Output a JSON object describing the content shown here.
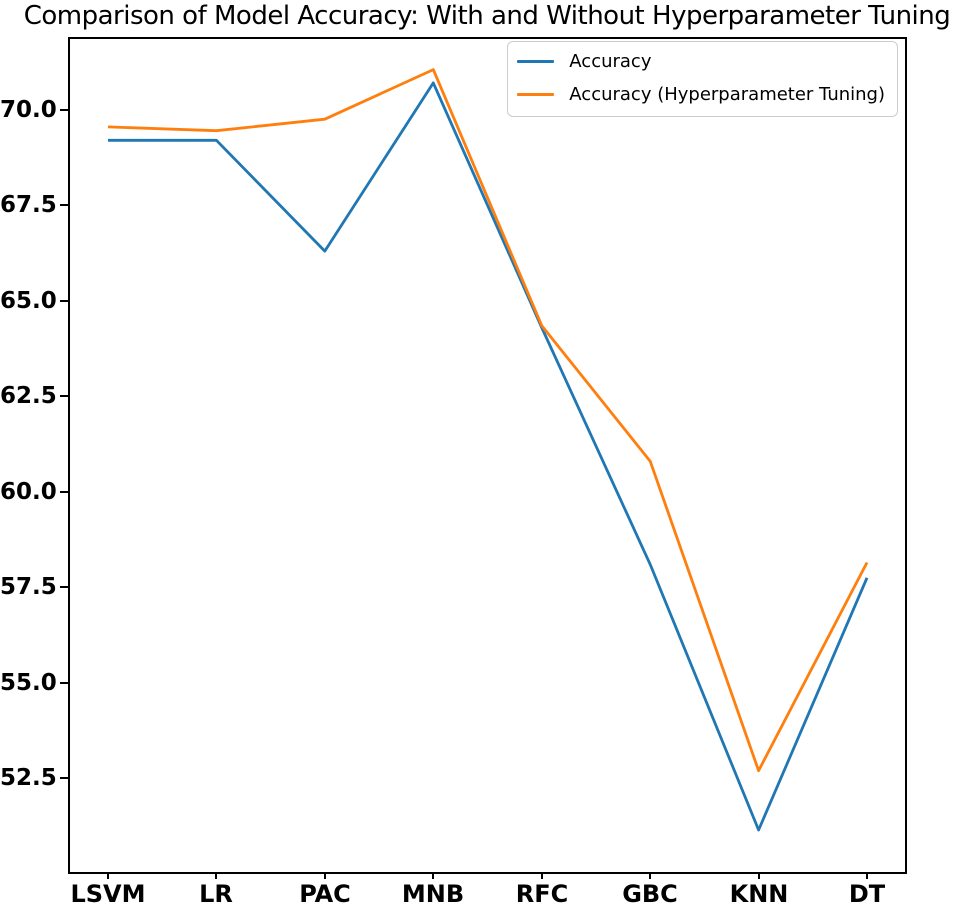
{
  "chart_data": {
    "type": "line",
    "title": "Comparison of Model Accuracy: With and Without Hyperparameter Tuning",
    "categories": [
      "LSVM",
      "LR",
      "PAC",
      "MNB",
      "RFC",
      "GBC",
      "KNN",
      "DT"
    ],
    "series": [
      {
        "name": "Accuracy",
        "color": "#1f77b4",
        "values": [
          69.2,
          69.2,
          66.3,
          70.7,
          64.3,
          58.1,
          51.15,
          57.75
        ]
      },
      {
        "name": "Accuracy (Hyperparameter Tuning)",
        "color": "#ff7f0e",
        "values": [
          69.55,
          69.45,
          69.75,
          71.05,
          64.35,
          60.8,
          52.7,
          58.15
        ]
      }
    ],
    "xlabel": "",
    "ylabel": "",
    "ylim": [
      50.05,
      71.85
    ],
    "yticks": [
      70.0,
      67.5,
      65.0,
      62.5,
      60.0,
      57.5,
      55.0,
      52.5
    ],
    "ytick_format_decimals": 1,
    "grid": false,
    "legend_position": "upper right",
    "axis_color": "#000000",
    "background_color": "#ffffff"
  }
}
